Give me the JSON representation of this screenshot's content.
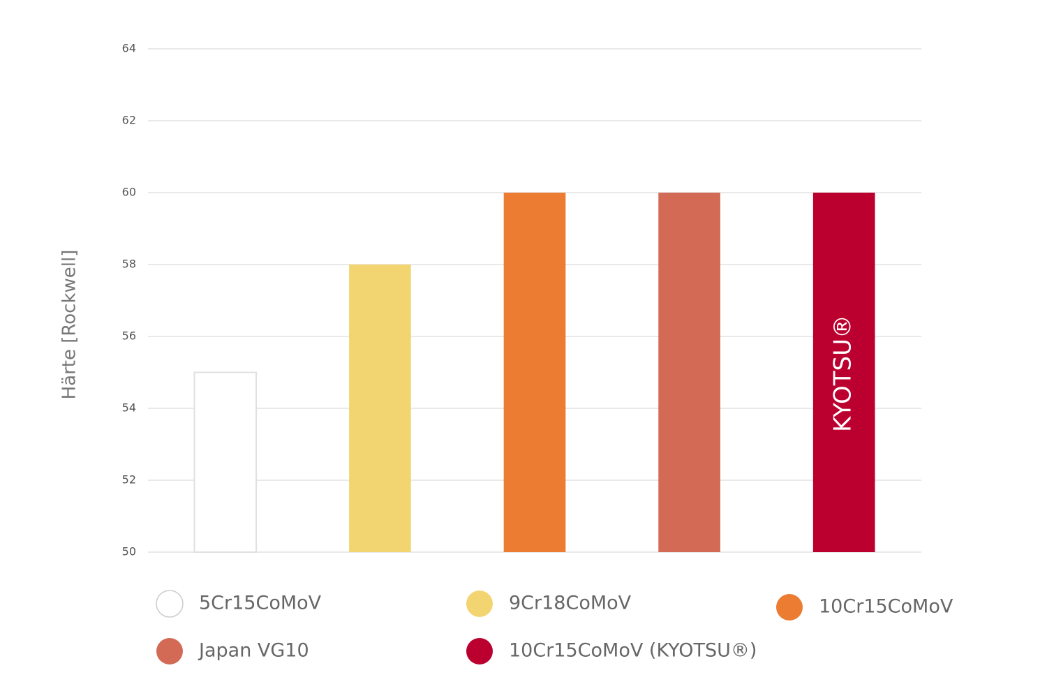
{
  "chart_data": {
    "type": "bar",
    "ylabel": "Härte [Rockwell]",
    "annotation": "KYOTSU®",
    "categories": [
      "5Cr15CoMoV",
      "9Cr18CoMoV",
      "10Cr15CoMoV",
      "Japan VG10",
      "10Cr15CoMoV (KYOTSU®)"
    ],
    "values": [
      55,
      58,
      60,
      60,
      60
    ],
    "colors": [
      "#ffffff",
      "#f2d570",
      "#ec7c31",
      "#d26a55",
      "#bb002f"
    ],
    "ylim": [
      50,
      64
    ],
    "yticks": [
      50,
      52,
      54,
      56,
      58,
      60,
      62,
      64
    ],
    "grid": true
  }
}
